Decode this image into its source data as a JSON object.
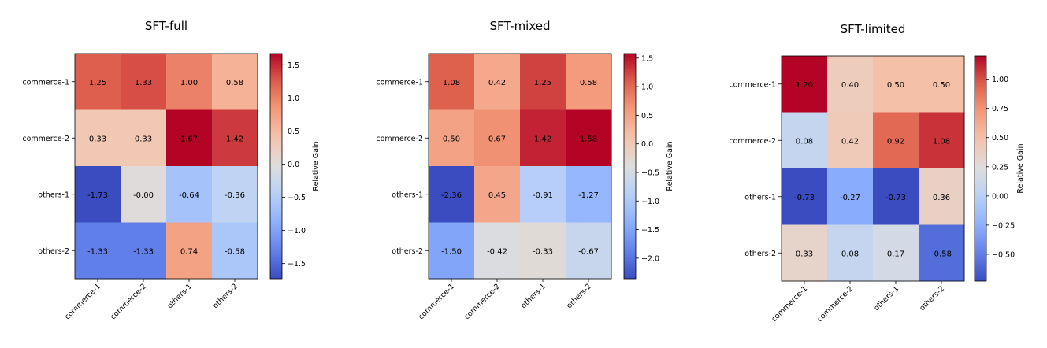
{
  "chart_data": [
    {
      "type": "heatmap",
      "title": "SFT-full",
      "rows": [
        "commerce-1",
        "commerce-2",
        "others-1",
        "others-2"
      ],
      "columns": [
        "commerce-1",
        "commerce-2",
        "others-1",
        "others-2"
      ],
      "values": [
        [
          1.25,
          1.33,
          1.0,
          0.58
        ],
        [
          0.33,
          0.33,
          1.67,
          1.42
        ],
        [
          -1.73,
          -0.0,
          -0.64,
          -0.36
        ],
        [
          -1.33,
          -1.33,
          0.74,
          -0.58
        ]
      ],
      "cell_labels": [
        [
          "1.25",
          "1.33",
          "1.00",
          "0.58"
        ],
        [
          "0.33",
          "0.33",
          "1.67",
          "1.42"
        ],
        [
          "-1.73",
          "-0.00",
          "-0.64",
          "-0.36"
        ],
        [
          "-1.33",
          "-1.33",
          "0.74",
          "-0.58"
        ]
      ],
      "vmin": -1.73,
      "vmax": 1.67,
      "colorbar_label": "Relative Gain",
      "colorbar_ticks": [
        1.5,
        1.0,
        0.5,
        0.0,
        -0.5,
        -1.0,
        -1.5
      ],
      "colorbar_tick_labels": [
        "1.5",
        "1.0",
        "0.5",
        "0.0",
        "−0.5",
        "−1.0",
        "−1.5"
      ],
      "colormap": "coolwarm"
    },
    {
      "type": "heatmap",
      "title": "SFT-mixed",
      "rows": [
        "commerce-1",
        "commerce-2",
        "others-1",
        "others-2"
      ],
      "columns": [
        "commerce-1",
        "commerce-2",
        "others-1",
        "others-2"
      ],
      "values": [
        [
          1.08,
          0.42,
          1.25,
          0.58
        ],
        [
          0.5,
          0.67,
          1.42,
          1.58
        ],
        [
          -2.36,
          0.45,
          -0.91,
          -1.27
        ],
        [
          -1.5,
          -0.42,
          -0.33,
          -0.67
        ]
      ],
      "cell_labels": [
        [
          "1.08",
          "0.42",
          "1.25",
          "0.58"
        ],
        [
          "0.50",
          "0.67",
          "1.42",
          "1.58"
        ],
        [
          "-2.36",
          "0.45",
          "-0.91",
          "-1.27"
        ],
        [
          "-1.50",
          "-0.42",
          "-0.33",
          "-0.67"
        ]
      ],
      "vmin": -2.36,
      "vmax": 1.58,
      "colorbar_label": "Relative Gain",
      "colorbar_ticks": [
        1.5,
        1.0,
        0.5,
        0.0,
        -0.5,
        -1.0,
        -1.5,
        -2.0
      ],
      "colorbar_tick_labels": [
        "1.5",
        "1.0",
        "0.5",
        "0.0",
        "−0.5",
        "−1.0",
        "−1.5",
        "−2.0"
      ],
      "colormap": "coolwarm"
    },
    {
      "type": "heatmap",
      "title": "SFT-limited",
      "rows": [
        "commerce-1",
        "commerce-2",
        "others-1",
        "others-2"
      ],
      "columns": [
        "commerce-1",
        "commerce-2",
        "others-1",
        "others-2"
      ],
      "values": [
        [
          1.2,
          0.4,
          0.5,
          0.5
        ],
        [
          0.08,
          0.42,
          0.92,
          1.08
        ],
        [
          -0.73,
          -0.27,
          -0.73,
          0.36
        ],
        [
          0.33,
          0.08,
          0.17,
          -0.58
        ]
      ],
      "cell_labels": [
        [
          "1.20",
          "0.40",
          "0.50",
          "0.50"
        ],
        [
          "0.08",
          "0.42",
          "0.92",
          "1.08"
        ],
        [
          "-0.73",
          "-0.27",
          "-0.73",
          "0.36"
        ],
        [
          "0.33",
          "0.08",
          "0.17",
          "-0.58"
        ]
      ],
      "vmin": -0.73,
      "vmax": 1.2,
      "colorbar_label": "Relative Gain",
      "colorbar_ticks": [
        1.0,
        0.75,
        0.5,
        0.25,
        0.0,
        -0.25,
        -0.5
      ],
      "colorbar_tick_labels": [
        "1.00",
        "0.75",
        "0.50",
        "0.25",
        "0.00",
        "−0.25",
        "−0.50"
      ],
      "colormap": "coolwarm"
    }
  ]
}
